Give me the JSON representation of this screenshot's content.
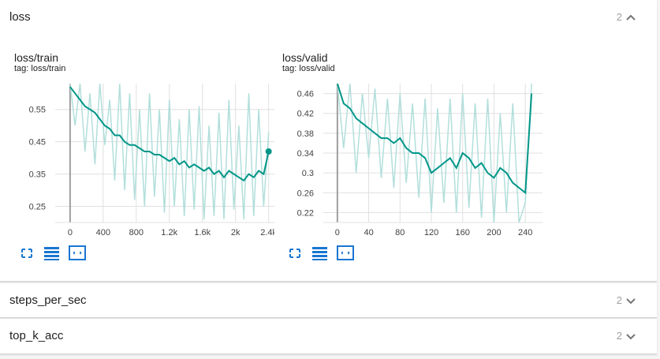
{
  "panes": {
    "loss": {
      "title": "loss",
      "count": "2",
      "state": "expanded"
    },
    "steps_per_sec": {
      "title": "steps_per_sec",
      "count": "2",
      "state": "collapsed"
    },
    "top_k_acc": {
      "title": "top_k_acc",
      "count": "2",
      "state": "collapsed"
    }
  },
  "cards": [
    {
      "title": "loss/train",
      "tag": "tag: loss/train"
    },
    {
      "title": "loss/valid",
      "tag": "tag: loss/valid"
    }
  ],
  "icons": [
    "fullscreen-icon",
    "data-list-icon",
    "fit-domain-icon"
  ],
  "colors": {
    "series": "#009688",
    "series_light": "#b2dfdb",
    "grid": "#e0e0e0",
    "axis": "#9e9e9e",
    "icon": "#1976d2"
  },
  "chart_data": [
    {
      "type": "line",
      "title": "loss/train",
      "xlim": [
        -180,
        2470
      ],
      "ylim": [
        0.2,
        0.63
      ],
      "xticks": [
        0,
        400,
        800,
        1200,
        1600,
        2000,
        2400
      ],
      "xtick_labels": [
        "0",
        "400",
        "800",
        "1.2k",
        "1.6k",
        "2k",
        "2.4k"
      ],
      "yticks": [
        0.25,
        0.35,
        0.45,
        0.55
      ],
      "ytick_labels": [
        "0.25",
        "0.35",
        "0.45",
        "0.55"
      ],
      "grid": true,
      "series": [
        {
          "style": "smoothed",
          "x": [
            0,
            60,
            120,
            180,
            240,
            300,
            360,
            420,
            480,
            540,
            600,
            660,
            720,
            780,
            840,
            900,
            960,
            1020,
            1080,
            1140,
            1200,
            1260,
            1320,
            1380,
            1440,
            1500,
            1560,
            1620,
            1680,
            1740,
            1800,
            1860,
            1920,
            1980,
            2040,
            2100,
            2160,
            2220,
            2280,
            2340,
            2400
          ],
          "y": [
            0.62,
            0.6,
            0.58,
            0.56,
            0.55,
            0.54,
            0.52,
            0.5,
            0.49,
            0.47,
            0.47,
            0.45,
            0.44,
            0.44,
            0.43,
            0.42,
            0.42,
            0.41,
            0.41,
            0.4,
            0.39,
            0.4,
            0.38,
            0.39,
            0.37,
            0.38,
            0.37,
            0.36,
            0.37,
            0.35,
            0.36,
            0.34,
            0.36,
            0.35,
            0.34,
            0.33,
            0.35,
            0.34,
            0.36,
            0.35,
            0.42
          ]
        },
        {
          "style": "raw",
          "x": [
            0,
            60,
            120,
            180,
            240,
            300,
            360,
            420,
            480,
            540,
            600,
            660,
            720,
            780,
            840,
            900,
            960,
            1020,
            1080,
            1140,
            1200,
            1260,
            1320,
            1380,
            1440,
            1500,
            1560,
            1620,
            1680,
            1740,
            1800,
            1860,
            1920,
            1980,
            2040,
            2100,
            2160,
            2220,
            2280,
            2340,
            2400
          ],
          "y": [
            0.63,
            0.5,
            0.63,
            0.42,
            0.6,
            0.38,
            0.63,
            0.44,
            0.58,
            0.33,
            0.63,
            0.3,
            0.6,
            0.27,
            0.55,
            0.25,
            0.6,
            0.28,
            0.55,
            0.23,
            0.58,
            0.25,
            0.52,
            0.22,
            0.55,
            0.24,
            0.56,
            0.21,
            0.5,
            0.22,
            0.54,
            0.21,
            0.58,
            0.24,
            0.5,
            0.21,
            0.6,
            0.22,
            0.55,
            0.25,
            0.48
          ]
        }
      ]
    },
    {
      "type": "line",
      "title": "loss/valid",
      "xlim": [
        -18,
        262
      ],
      "ylim": [
        0.2,
        0.48
      ],
      "xticks": [
        0,
        40,
        80,
        120,
        160,
        200,
        240
      ],
      "xtick_labels": [
        "0",
        "40",
        "80",
        "120",
        "160",
        "200",
        "240"
      ],
      "yticks": [
        0.22,
        0.26,
        0.3,
        0.34,
        0.38,
        0.42,
        0.46
      ],
      "ytick_labels": [
        "0.22",
        "0.26",
        "0.3",
        "0.34",
        "0.38",
        "0.42",
        "0.46"
      ],
      "grid": true,
      "series": [
        {
          "style": "smoothed",
          "x": [
            0,
            8,
            16,
            24,
            32,
            40,
            48,
            56,
            64,
            72,
            80,
            88,
            96,
            104,
            112,
            120,
            128,
            136,
            144,
            152,
            160,
            168,
            176,
            184,
            192,
            200,
            208,
            216,
            224,
            232,
            240,
            248
          ],
          "y": [
            0.48,
            0.44,
            0.43,
            0.41,
            0.4,
            0.39,
            0.38,
            0.37,
            0.37,
            0.36,
            0.37,
            0.35,
            0.34,
            0.34,
            0.33,
            0.3,
            0.31,
            0.32,
            0.33,
            0.31,
            0.34,
            0.33,
            0.31,
            0.32,
            0.3,
            0.29,
            0.31,
            0.3,
            0.28,
            0.27,
            0.26,
            0.46
          ]
        },
        {
          "style": "raw",
          "x": [
            0,
            8,
            16,
            24,
            32,
            40,
            48,
            56,
            64,
            72,
            80,
            88,
            96,
            104,
            112,
            120,
            128,
            136,
            144,
            152,
            160,
            168,
            176,
            184,
            192,
            200,
            208,
            216,
            224,
            232,
            240,
            248
          ],
          "y": [
            0.48,
            0.35,
            0.48,
            0.3,
            0.46,
            0.33,
            0.47,
            0.29,
            0.45,
            0.27,
            0.46,
            0.28,
            0.44,
            0.25,
            0.45,
            0.22,
            0.43,
            0.24,
            0.45,
            0.22,
            0.46,
            0.23,
            0.44,
            0.21,
            0.45,
            0.2,
            0.42,
            0.22,
            0.44,
            0.2,
            0.24,
            0.48
          ]
        }
      ]
    }
  ]
}
